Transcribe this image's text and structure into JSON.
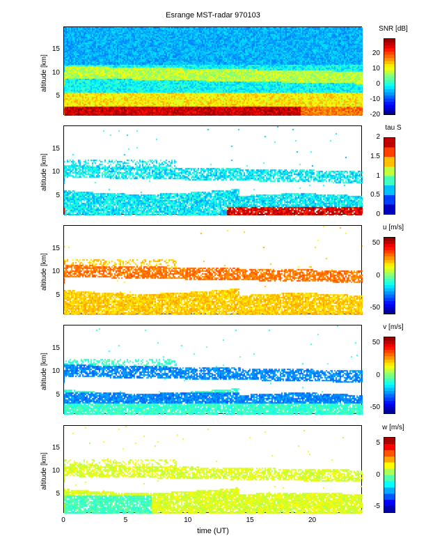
{
  "chart_data": {
    "type": "heatmap",
    "title": "Esrange MST-radar 970103",
    "xlabel": "time (UT)",
    "xlim": [
      0,
      24
    ],
    "xticks": [
      "0",
      "5",
      "10",
      "15",
      "20"
    ],
    "panels": [
      {
        "ylabel": "altitude [km]",
        "ylim": [
          1,
          20
        ],
        "yticks": [
          "5",
          "10",
          "15"
        ],
        "colorbar_label": "SNR [dB]",
        "clim": [
          -20,
          30
        ],
        "cticks": [
          "-20",
          "-10",
          "0",
          "10",
          "20"
        ],
        "features": "strong echo (20-30 dB) below 3 km, enhanced layers near 5 and 10 km, noise (-10 dB) above 12 km"
      },
      {
        "ylabel": "altitude [km]",
        "ylim": [
          1,
          20
        ],
        "yticks": [
          "5",
          "10",
          "15"
        ],
        "colorbar_label": "tau S",
        "clim": [
          0,
          2
        ],
        "cticks": [
          "0",
          "0.5",
          "1",
          "1.5",
          "2"
        ],
        "features": "values 0.5-1 in layers 1-7 km and 9-12 km; up to 2 below 3 km after 13 UT"
      },
      {
        "ylabel": "altitude [km]",
        "ylim": [
          1,
          20
        ],
        "yticks": [
          "5",
          "10",
          "15"
        ],
        "colorbar_label": "u [m/s]",
        "clim": [
          -60,
          60
        ],
        "cticks": [
          "-50",
          "0",
          "50"
        ],
        "features": "u ~15-30 m/s near 10 km, ~10-20 m/s below 7 km"
      },
      {
        "ylabel": "altitude [km]",
        "ylim": [
          1,
          20
        ],
        "yticks": [
          "5",
          "10",
          "15"
        ],
        "colorbar_label": "v [m/s]",
        "clim": [
          -60,
          60
        ],
        "cticks": [
          "-50",
          "0",
          "50"
        ],
        "features": "v ~ -30 to -50 m/s near 10 km and 4-6 km, ~ -15 m/s near ground"
      },
      {
        "ylabel": "altitude [km]",
        "ylim": [
          1,
          20
        ],
        "yticks": [
          "5",
          "10",
          "15"
        ],
        "colorbar_label": "w [m/s]",
        "clim": [
          -6,
          6
        ],
        "cticks": [
          "-5",
          "0",
          "5"
        ],
        "features": "w ~ 0 to 1 m/s, small variability"
      }
    ]
  }
}
